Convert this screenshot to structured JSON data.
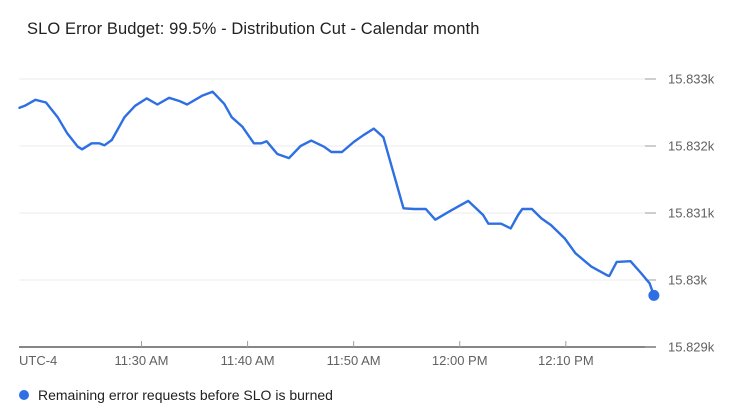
{
  "title": "SLO Error Budget: 99.5% - Distribution Cut - Calendar month",
  "colors": {
    "series": "#2e6fe3",
    "grid": "#ebebeb",
    "axis": "#757575",
    "tick": "#9e9e9e",
    "tick_label": "#616161",
    "title_text": "#212121",
    "legend_text": "#212121",
    "background": "#ffffff"
  },
  "legend": {
    "marker": "circle",
    "label": "Remaining error requests before SLO is burned"
  },
  "chart_data": {
    "type": "line",
    "title": "SLO Error Budget: 99.5% - Distribution Cut - Calendar month",
    "grid": "horizontal",
    "legend_position": "bottom-left",
    "x_axis": {
      "unit": "time-of-day",
      "timezone_label": "UTC-4",
      "range_minutes_after_11am": [
        18.5,
        78.5
      ],
      "ticks": [
        {
          "t": 30,
          "label": "11:30 AM"
        },
        {
          "t": 40,
          "label": "11:40 AM"
        },
        {
          "t": 50,
          "label": "11:50 AM"
        },
        {
          "t": 60,
          "label": "12:00 PM"
        },
        {
          "t": 70,
          "label": "12:10 PM"
        }
      ]
    },
    "y_axis": {
      "unit": "requests",
      "range": [
        15829,
        15833
      ],
      "ticks": [
        {
          "v": 15833,
          "label": "15.833k"
        },
        {
          "v": 15832,
          "label": "15.832k"
        },
        {
          "v": 15831,
          "label": "15.831k"
        },
        {
          "v": 15830,
          "label": "15.83k"
        },
        {
          "v": 15829,
          "label": "15.829k"
        }
      ]
    },
    "series": [
      {
        "name": "Remaining error requests before SLO is burned",
        "color": "#2e6fe3",
        "end_marker": "dot",
        "points": [
          [
            18.5,
            15832.57
          ],
          [
            19.0,
            15832.6
          ],
          [
            20.0,
            15832.69
          ],
          [
            21.0,
            15832.65
          ],
          [
            22.1,
            15832.43
          ],
          [
            23.0,
            15832.19
          ],
          [
            24.0,
            15831.99
          ],
          [
            24.4,
            15831.95
          ],
          [
            25.3,
            15832.04
          ],
          [
            26.0,
            15832.04
          ],
          [
            26.5,
            15832.01
          ],
          [
            27.2,
            15832.09
          ],
          [
            28.4,
            15832.43
          ],
          [
            29.4,
            15832.6
          ],
          [
            30.5,
            15832.71
          ],
          [
            31.5,
            15832.62
          ],
          [
            32.6,
            15832.72
          ],
          [
            33.6,
            15832.67
          ],
          [
            34.3,
            15832.62
          ],
          [
            35.7,
            15832.75
          ],
          [
            36.7,
            15832.81
          ],
          [
            37.8,
            15832.63
          ],
          [
            38.5,
            15832.43
          ],
          [
            39.5,
            15832.29
          ],
          [
            40.6,
            15832.04
          ],
          [
            41.3,
            15832.04
          ],
          [
            41.8,
            15832.07
          ],
          [
            42.8,
            15831.88
          ],
          [
            43.9,
            15831.82
          ],
          [
            45.0,
            15832.0
          ],
          [
            46.0,
            15832.08
          ],
          [
            47.2,
            15831.99
          ],
          [
            47.9,
            15831.91
          ],
          [
            48.9,
            15831.91
          ],
          [
            50.0,
            15832.06
          ],
          [
            50.9,
            15832.16
          ],
          [
            51.9,
            15832.26
          ],
          [
            52.8,
            15832.13
          ],
          [
            54.7,
            15831.07
          ],
          [
            55.7,
            15831.06
          ],
          [
            56.8,
            15831.06
          ],
          [
            57.7,
            15830.9
          ],
          [
            59.2,
            15831.04
          ],
          [
            60.8,
            15831.18
          ],
          [
            62.2,
            15830.97
          ],
          [
            62.7,
            15830.84
          ],
          [
            63.9,
            15830.84
          ],
          [
            64.8,
            15830.77
          ],
          [
            65.5,
            15830.97
          ],
          [
            65.9,
            15831.06
          ],
          [
            66.8,
            15831.06
          ],
          [
            67.7,
            15830.92
          ],
          [
            68.6,
            15830.82
          ],
          [
            69.9,
            15830.62
          ],
          [
            70.9,
            15830.4
          ],
          [
            72.4,
            15830.2
          ],
          [
            73.9,
            15830.07
          ],
          [
            74.1,
            15830.06
          ],
          [
            74.8,
            15830.27
          ],
          [
            76.1,
            15830.28
          ],
          [
            77.0,
            15830.12
          ],
          [
            77.9,
            15829.95
          ],
          [
            78.3,
            15829.77
          ]
        ]
      }
    ]
  }
}
